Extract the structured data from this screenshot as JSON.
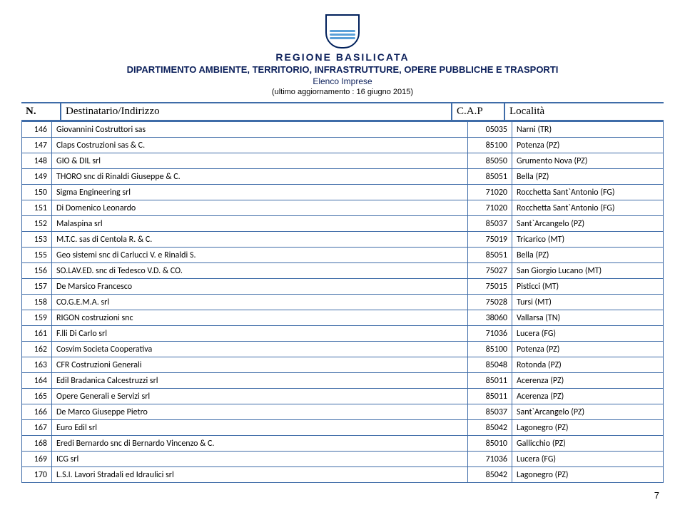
{
  "header": {
    "region": "REGIONE   BASILICATA",
    "department": "DIPARTIMENTO AMBIENTE, TERRITORIO, INFRASTRUTTURE, OPERE PUBBLICHE  E TRASPORTI",
    "subtitle": "Elenco Imprese",
    "update": "(ultimo aggiornamento : 16 giugno 2015)"
  },
  "columns": {
    "n": "N.",
    "dest": "Destinatario/Indirizzo",
    "cap": "C.A.P",
    "loc": "Località"
  },
  "rows": [
    {
      "n": "146",
      "dest": "Giovannini Costruttori sas",
      "cap": "05035",
      "loc": "Narni (TR)"
    },
    {
      "n": "147",
      "dest": "Claps Costruzioni sas & C.",
      "cap": "85100",
      "loc": "Potenza (PZ)"
    },
    {
      "n": "148",
      "dest": "GIO & DIL srl",
      "cap": "85050",
      "loc": "Grumento Nova (PZ)"
    },
    {
      "n": "149",
      "dest": "THORO snc di Rinaldi Giuseppe & C.",
      "cap": "85051",
      "loc": "Bella (PZ)"
    },
    {
      "n": "150",
      "dest": "Sigma Engineering srl",
      "cap": "71020",
      "loc": "Rocchetta Sant`Antonio (FG)"
    },
    {
      "n": "151",
      "dest": "Di Domenico Leonardo",
      "cap": "71020",
      "loc": "Rocchetta Sant`Antonio (FG)"
    },
    {
      "n": "152",
      "dest": "Malaspina srl",
      "cap": "85037",
      "loc": "Sant`Arcangelo (PZ)"
    },
    {
      "n": "153",
      "dest": "M.T.C. sas di Centola R. & C.",
      "cap": "75019",
      "loc": "Tricarico (MT)"
    },
    {
      "n": "155",
      "dest": "Geo sistemi snc di Carlucci V. e Rinaldi S.",
      "cap": "85051",
      "loc": "Bella (PZ)"
    },
    {
      "n": "156",
      "dest": "SO.LAV.ED. snc di Tedesco V.D. & CO.",
      "cap": "75027",
      "loc": "San Giorgio Lucano (MT)"
    },
    {
      "n": "157",
      "dest": "De Marsico Francesco",
      "cap": "75015",
      "loc": "Pisticci (MT)"
    },
    {
      "n": "158",
      "dest": "CO.G.E.M.A. srl",
      "cap": "75028",
      "loc": "Tursi (MT)"
    },
    {
      "n": "159",
      "dest": "RIGON costruzioni snc",
      "cap": "38060",
      "loc": "Vallarsa (TN)"
    },
    {
      "n": "161",
      "dest": "F.lli Di Carlo srl",
      "cap": "71036",
      "loc": "Lucera (FG)"
    },
    {
      "n": "162",
      "dest": "Cosvim Societa Cooperativa",
      "cap": "85100",
      "loc": "Potenza (PZ)"
    },
    {
      "n": "163",
      "dest": "CFR Costruzioni Generali",
      "cap": "85048",
      "loc": "Rotonda (PZ)"
    },
    {
      "n": "164",
      "dest": "Edil Bradanica Calcestruzzi srl",
      "cap": "85011",
      "loc": "Acerenza (PZ)"
    },
    {
      "n": "165",
      "dest": "Opere Generali e Servizi srl",
      "cap": "85011",
      "loc": "Acerenza (PZ)"
    },
    {
      "n": "166",
      "dest": "De Marco Giuseppe Pietro",
      "cap": "85037",
      "loc": "Sant`Arcangelo (PZ)"
    },
    {
      "n": "167",
      "dest": "Euro Edil srl",
      "cap": "85042",
      "loc": "Lagonegro (PZ)"
    },
    {
      "n": "168",
      "dest": "Eredi Bernardo snc di Bernardo Vincenzo & C.",
      "cap": "85010",
      "loc": "Gallicchio (PZ)"
    },
    {
      "n": "169",
      "dest": "ICG srl",
      "cap": "71036",
      "loc": "Lucera (FG)"
    },
    {
      "n": "170",
      "dest": "L.S.I. Lavori Stradali ed Idraulici srl",
      "cap": "85042",
      "loc": "Lagonegro (PZ)"
    }
  ],
  "page": "7"
}
